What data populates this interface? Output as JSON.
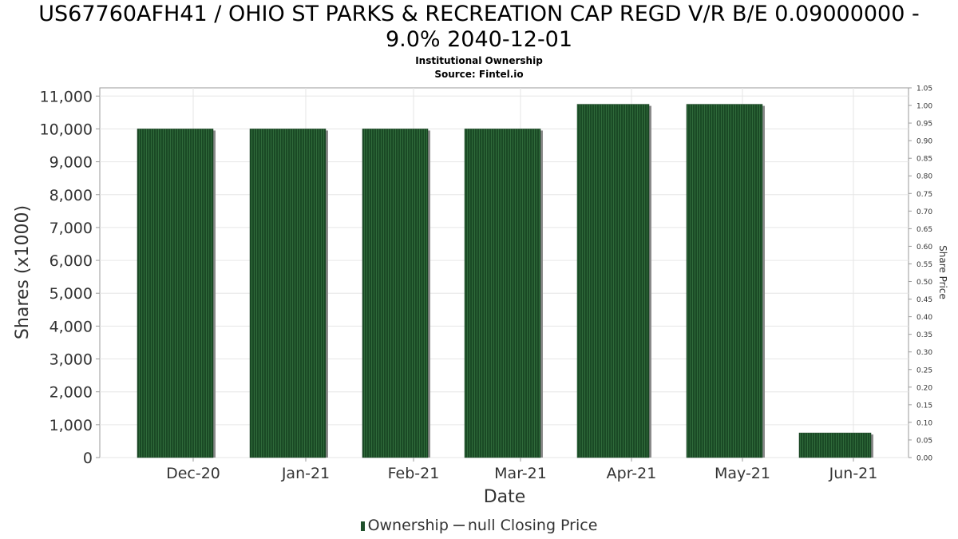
{
  "title_line1": "US67760AFH41 / OHIO ST PARKS & RECREATION CAP REGD V/R B/E 0.09000000 -",
  "title_line2": "9.0% 2040-12-01",
  "subtitle1": "Institutional Ownership",
  "subtitle2": "Source: Fintel.io",
  "legend": {
    "ownership": "Ownership",
    "price": "null Closing Price"
  },
  "colors": {
    "bar": "#1a4a25",
    "bar_stripe": "#2f6a3a",
    "bar_shadow": "#8a8a8a",
    "grid": "#e6e6e6",
    "axis": "#999999"
  },
  "chart_data": {
    "type": "bar",
    "title": "US67760AFH41 / OHIO ST PARKS & RECREATION CAP REGD V/R B/E 0.09000000 - 9.0% 2040-12-01",
    "subtitle": "Institutional Ownership",
    "xlabel": "Date",
    "ylabel": "Shares (x1000)",
    "y2label": "Share Price",
    "categories": [
      "Dec-20",
      "Jan-21",
      "Feb-21",
      "Mar-21",
      "Apr-21",
      "May-21",
      "Jun-21"
    ],
    "series": [
      {
        "name": "Ownership",
        "values": [
          10000,
          10000,
          10000,
          10000,
          10750,
          10750,
          750
        ]
      }
    ],
    "ylim": [
      0,
      11250
    ],
    "yticks": [
      0,
      1000,
      2000,
      3000,
      4000,
      5000,
      6000,
      7000,
      8000,
      9000,
      10000,
      11000
    ],
    "ytick_labels": [
      "0",
      "1,000",
      "2,000",
      "3,000",
      "4,000",
      "5,000",
      "6,000",
      "7,000",
      "8,000",
      "9,000",
      "10,000",
      "11,000"
    ],
    "y2lim": [
      0,
      1.05
    ],
    "y2ticks": [
      "0.00",
      "0.05",
      "0.10",
      "0.15",
      "0.20",
      "0.25",
      "0.30",
      "0.35",
      "0.40",
      "0.45",
      "0.50",
      "0.55",
      "0.60",
      "0.65",
      "0.70",
      "0.75",
      "0.80",
      "0.85",
      "0.90",
      "0.95",
      "1.00",
      "1.05"
    ],
    "grid": true,
    "legend_position": "bottom"
  }
}
